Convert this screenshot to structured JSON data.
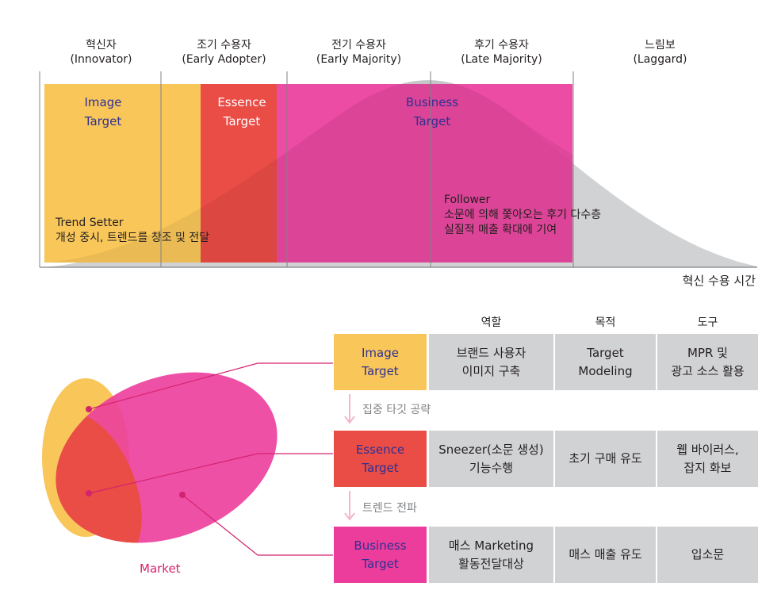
{
  "stages": [
    {
      "name": "혁신자",
      "sub": "(Innovator)"
    },
    {
      "name": "조기 수용자",
      "sub": "(Early Adopter)"
    },
    {
      "name": "전기 수용자",
      "sub": "(Early Majority)"
    },
    {
      "name": "후기 수용자",
      "sub": "(Late Majority)"
    },
    {
      "name": "느림보",
      "sub": "(Laggard)"
    }
  ],
  "blocks": {
    "image": {
      "line1": "Image",
      "line2": "Target",
      "color": "#f9c65a"
    },
    "essence": {
      "line1": "Essence",
      "line2": "Target",
      "color": "#ea4c46"
    },
    "business": {
      "line1": "Business",
      "line2": "Target",
      "color": "#ec3d9c"
    }
  },
  "notes": {
    "trend_setter": "Trend Setter\n개성 중시, 트렌드를 창조 및 전달",
    "follower": "Follower\n소문에 의해 쫓아오는 후기 다수층\n실질적 매출 확대에 기여"
  },
  "axis_title": "혁신 수용 시간",
  "table": {
    "headers": [
      "역할",
      "목적",
      "도구"
    ],
    "rows": [
      {
        "target": "Image\nTarget",
        "role": "브랜드 사용자\n이미지 구축",
        "purpose": "Target\nModeling",
        "tool": "MPR 및\n광고 소스 활용",
        "color": "#f9c65a",
        "text_color": "#2e3192"
      },
      {
        "target": "Essence\nTarget",
        "role": "Sneezer(소문 생성)\n기능수행",
        "purpose": "초기 구매 유도",
        "tool": "웹 바이러스,\n잡지 화보",
        "color": "#ea4c46",
        "text_color": "#2e3192"
      },
      {
        "target": "Business\nTarget",
        "role": "매스 Marketing\n활동전달대상",
        "purpose": "매스 매출 유도",
        "tool": "입소문",
        "color": "#ec3d9c",
        "text_color": "#2e3192"
      }
    ],
    "steps": [
      "집중 타깃 공략",
      "트렌드 전파"
    ]
  },
  "market_label": "Market",
  "colors": {
    "curve": "#d1d2d4",
    "accent_line": "#d4236d",
    "arrow": "#f4b6cf"
  }
}
